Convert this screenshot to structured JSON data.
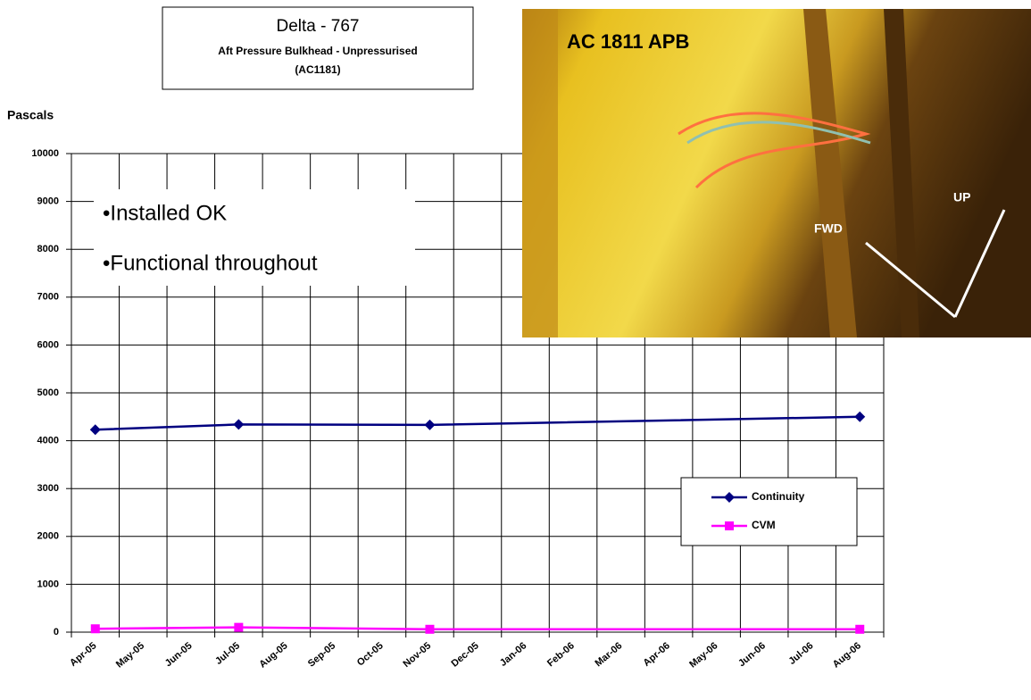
{
  "chart_data": {
    "type": "line",
    "title": "Delta - 767",
    "subtitle": [
      "Aft Pressure Bulkhead - Unpressurised",
      "(AC1181)"
    ],
    "y_label": "Pascals",
    "annotations": [
      "•Installed OK",
      "•Functional throughout"
    ],
    "categories": [
      "Apr-05",
      "May-05",
      "Jun-05",
      "Jul-05",
      "Aug-05",
      "Sep-05",
      "Oct-05",
      "Nov-05",
      "Dec-05",
      "Jan-06",
      "Feb-06",
      "Mar-06",
      "Apr-06",
      "May-06",
      "Jun-06",
      "Jul-06",
      "Aug-06"
    ],
    "x": [
      "Apr-05",
      "Jul-05",
      "Nov-05",
      "Aug-06"
    ],
    "series": [
      {
        "name": "Continuity",
        "color": "#000080",
        "marker": "diamond",
        "values": [
          4230,
          4340,
          4330,
          4500
        ]
      },
      {
        "name": "CVM",
        "color": "#ff00ff",
        "marker": "square",
        "values": [
          70,
          100,
          60,
          60
        ]
      }
    ],
    "ylim": [
      0,
      10000
    ],
    "yticks": [
      0,
      1000,
      2000,
      3000,
      4000,
      5000,
      6000,
      7000,
      8000,
      9000,
      10000
    ],
    "grid": true
  },
  "photo_labels": {
    "title": "AC 1811 APB",
    "fwd": "FWD",
    "up": "UP"
  }
}
